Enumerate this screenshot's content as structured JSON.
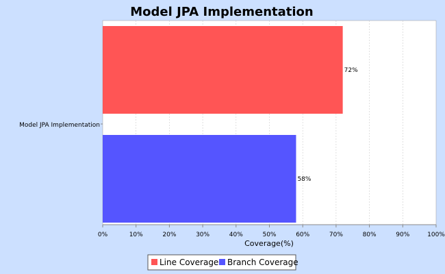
{
  "chart_data": {
    "type": "bar",
    "orientation": "horizontal",
    "title": "Model JPA Implementation",
    "categories": [
      "Model JPA Implementation"
    ],
    "series": [
      {
        "name": "Line Coverage",
        "values": [
          72
        ],
        "color": "#ff5555",
        "label": "72%"
      },
      {
        "name": "Branch Coverage",
        "values": [
          58
        ],
        "color": "#5555ff",
        "label": "58%"
      }
    ],
    "xlabel": "Coverage(%)",
    "ylabel": "",
    "xlim": [
      0,
      100
    ],
    "xticks": [
      "0%",
      "10%",
      "20%",
      "30%",
      "40%",
      "50%",
      "60%",
      "70%",
      "80%",
      "90%",
      "100%"
    ],
    "grid": true,
    "legend": "bottom"
  },
  "colors": {
    "background": "#cce0ff",
    "plot_background": "#ffffff",
    "gridline": "#cccccc"
  }
}
